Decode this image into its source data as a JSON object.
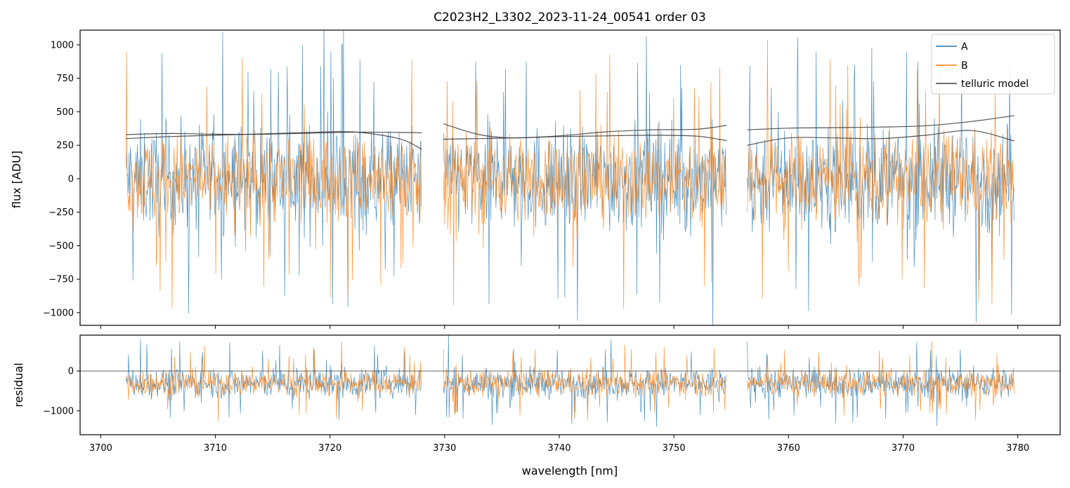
{
  "chart_data": [
    {
      "type": "line",
      "panel": "main",
      "title": "C2023H2_L3302_2023-11-24_00541  order 03",
      "xlabel": "",
      "ylabel": "flux [ADU]",
      "xlim": [
        3698.2,
        3783.7
      ],
      "ylim": [
        -1095,
        1110
      ],
      "y_ticks": [
        -1000,
        -750,
        -500,
        -250,
        0,
        250,
        500,
        750,
        1000
      ],
      "y_tick_labels": [
        "−1000",
        "−750",
        "−500",
        "−250",
        "0",
        "250",
        "500",
        "750",
        "1000"
      ],
      "x_ticks": [
        3700,
        3710,
        3720,
        3730,
        3740,
        3750,
        3760,
        3770,
        3780
      ],
      "segments": [
        [
          3702.2,
          3728.0
        ],
        [
          3729.9,
          3754.6
        ],
        [
          3756.4,
          3779.7
        ]
      ],
      "legend_position": "upper right",
      "grid": false,
      "series": [
        {
          "name": "A",
          "color": "#1f77b4",
          "kind": "noisy spectrum",
          "center": 0,
          "typical_spread": 330,
          "extends_beyond_axes": true
        },
        {
          "name": "B",
          "color": "#ff7f0e",
          "kind": "noisy spectrum",
          "center": 0,
          "typical_spread": 280,
          "extends_beyond_axes": true
        },
        {
          "name": "telluric model",
          "color": "#404040",
          "kind": "smooth curves",
          "curves": [
            {
              "x": [
                3702.2,
                3706,
                3710,
                3714,
                3718,
                3722,
                3726,
                3728.0
              ],
              "y": [
                300,
                315,
                325,
                335,
                345,
                350,
                300,
                220
              ]
            },
            {
              "x": [
                3702.2,
                3706,
                3710,
                3714,
                3718,
                3722,
                3726,
                3728.0
              ],
              "y": [
                330,
                338,
                333,
                332,
                340,
                348,
                346,
                343
              ]
            },
            {
              "x": [
                3729.9,
                3733,
                3736,
                3740,
                3744,
                3748,
                3752,
                3754.6
              ],
              "y": [
                410,
                330,
                305,
                320,
                350,
                365,
                370,
                398
              ]
            },
            {
              "x": [
                3729.9,
                3733,
                3736,
                3740,
                3744,
                3748,
                3752,
                3754.6
              ],
              "y": [
                295,
                300,
                305,
                315,
                320,
                325,
                318,
                285
              ]
            },
            {
              "x": [
                3756.4,
                3760,
                3764,
                3768,
                3772,
                3776,
                3779.7
              ],
              "y": [
                365,
                378,
                382,
                386,
                396,
                428,
                472
              ]
            },
            {
              "x": [
                3756.4,
                3760,
                3764,
                3768,
                3772,
                3776,
                3779.7
              ],
              "y": [
                250,
                305,
                305,
                300,
                325,
                360,
                282
              ]
            }
          ]
        }
      ]
    },
    {
      "type": "line",
      "panel": "residual",
      "xlabel": "wavelength [nm]",
      "ylabel": "residual",
      "xlim": [
        3698.2,
        3783.7
      ],
      "ylim": [
        -1600,
        900
      ],
      "y_ticks": [
        -1000,
        0
      ],
      "y_tick_labels": [
        "−1000",
        "0"
      ],
      "x_ticks": [
        3700,
        3710,
        3720,
        3730,
        3740,
        3750,
        3760,
        3770,
        3780
      ],
      "x_tick_labels": [
        "3700",
        "3710",
        "3720",
        "3730",
        "3740",
        "3750",
        "3760",
        "3770",
        "3780"
      ],
      "reference_line": 0,
      "segments": [
        [
          3702.2,
          3728.0
        ],
        [
          3729.9,
          3754.6
        ],
        [
          3756.4,
          3779.7
        ]
      ],
      "series": [
        {
          "name": "A",
          "color": "#1f77b4",
          "center": -300,
          "typical_spread": 320
        },
        {
          "name": "B",
          "color": "#ff7f0e",
          "center": -300,
          "typical_spread": 280
        }
      ]
    }
  ]
}
